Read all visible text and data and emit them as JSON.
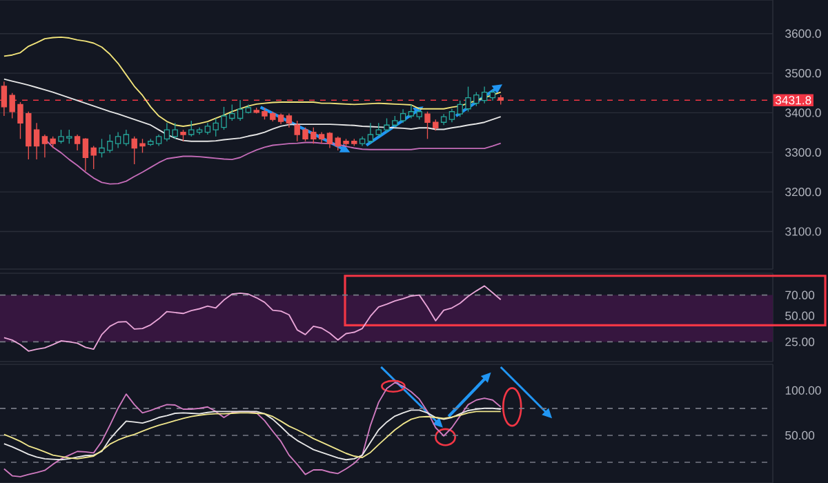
{
  "chart_data": [
    {
      "type": "candlestick",
      "categories": [
        null,
        null,
        null,
        null,
        null,
        null,
        null,
        null,
        null,
        null,
        null,
        null,
        null,
        null,
        null,
        null,
        null,
        null,
        null,
        null,
        null,
        null,
        null,
        null,
        null,
        null,
        null,
        null,
        null,
        null,
        null,
        null,
        null,
        null,
        null,
        null,
        null,
        null,
        null,
        null,
        null,
        null,
        null,
        null,
        null,
        null,
        null,
        null,
        null,
        null,
        null,
        null,
        null,
        null,
        null,
        null,
        null,
        null,
        null,
        null,
        null,
        null
      ],
      "ohlc": [
        [
          3467,
          3479,
          3392,
          3415
        ],
        [
          3444,
          3450,
          3386,
          3403
        ],
        [
          3421,
          3427,
          3334,
          3374
        ],
        [
          3398,
          3403,
          3282,
          3316
        ],
        [
          3357,
          3374,
          3282,
          3316
        ],
        [
          3340,
          3345,
          3287,
          3322
        ],
        [
          3334,
          3340,
          3311,
          3322
        ],
        [
          3328,
          3357,
          3322,
          3340
        ],
        [
          3336,
          3357,
          3322,
          3340
        ],
        [
          3340,
          3345,
          3305,
          3322
        ],
        [
          3334,
          3336,
          3253,
          3287
        ],
        [
          3311,
          3316,
          3258,
          3293
        ],
        [
          3299,
          3334,
          3287,
          3311
        ],
        [
          3305,
          3345,
          3299,
          3328
        ],
        [
          3322,
          3351,
          3311,
          3340
        ],
        [
          3322,
          3357,
          3316,
          3345
        ],
        [
          3334,
          3340,
          3270,
          3311
        ],
        [
          3322,
          3334,
          3299,
          3316
        ],
        [
          3320,
          3334,
          3316,
          3328
        ],
        [
          3322,
          3345,
          3316,
          3340
        ],
        [
          3334,
          3374,
          3328,
          3357
        ],
        [
          3340,
          3374,
          3334,
          3357
        ],
        [
          3351,
          3357,
          3328,
          3345
        ],
        [
          3345,
          3380,
          3340,
          3357
        ],
        [
          3351,
          3363,
          3345,
          3357
        ],
        [
          3351,
          3374,
          3345,
          3366
        ],
        [
          3357,
          3386,
          3340,
          3374
        ],
        [
          3363,
          3415,
          3357,
          3392
        ],
        [
          3386,
          3421,
          3380,
          3398
        ],
        [
          3386,
          3432,
          3380,
          3409
        ],
        [
          3401,
          3421,
          3398,
          3413
        ],
        [
          3406,
          3413,
          3398,
          3401
        ],
        [
          3403,
          3413,
          3383,
          3392
        ],
        [
          3398,
          3403,
          3378,
          3383
        ],
        [
          3394,
          3398,
          3371,
          3378
        ],
        [
          3392,
          3398,
          3363,
          3374
        ],
        [
          3369,
          3380,
          3328,
          3345
        ],
        [
          3357,
          3363,
          3328,
          3334
        ],
        [
          3351,
          3363,
          3322,
          3334
        ],
        [
          3345,
          3351,
          3322,
          3334
        ],
        [
          3348,
          3351,
          3311,
          3322
        ],
        [
          3336,
          3340,
          3305,
          3316
        ],
        [
          3328,
          3334,
          3316,
          3322
        ],
        [
          3328,
          3334,
          3316,
          3322
        ],
        [
          3322,
          3340,
          3316,
          3334
        ],
        [
          3328,
          3374,
          3322,
          3345
        ],
        [
          3345,
          3374,
          3340,
          3357
        ],
        [
          3357,
          3386,
          3351,
          3369
        ],
        [
          3369,
          3392,
          3363,
          3380
        ],
        [
          3380,
          3409,
          3374,
          3398
        ],
        [
          3392,
          3421,
          3386,
          3403
        ],
        [
          3390,
          3410,
          3383,
          3403
        ],
        [
          3397,
          3403,
          3334,
          3376
        ],
        [
          3376,
          3383,
          3355,
          3362
        ],
        [
          3376,
          3397,
          3369,
          3390
        ],
        [
          3383,
          3410,
          3376,
          3403
        ],
        [
          3397,
          3431,
          3390,
          3421
        ],
        [
          3410,
          3466,
          3403,
          3438
        ],
        [
          3424,
          3452,
          3417,
          3445
        ],
        [
          3431,
          3466,
          3424,
          3452
        ],
        [
          3438,
          3459,
          3431,
          3452
        ],
        [
          3438,
          3445,
          3421,
          3431.8
        ]
      ],
      "series": [
        {
          "type": "line",
          "color": "#f2e47a",
          "values": [
            3543,
            3546,
            3552,
            3568,
            3577,
            3587,
            3590,
            3591,
            3589,
            3584,
            3581,
            3576,
            3566,
            3548,
            3525,
            3496,
            3467,
            3444,
            3415,
            3392,
            3378,
            3369,
            3366,
            3369,
            3373,
            3378,
            3386,
            3394,
            3403,
            3410,
            3417,
            3422,
            3424,
            3426,
            3427,
            3427,
            3427,
            3427,
            3427,
            3424,
            3424,
            3423,
            3422,
            3421,
            3422,
            3423,
            3424,
            3423,
            3422,
            3421,
            3420,
            3410,
            3410,
            3410,
            3410,
            3414,
            3417,
            3424,
            3431,
            3438,
            3445,
            3452
          ]
        },
        {
          "type": "line",
          "color": "#e6e6e6",
          "values": [
            3485,
            3480,
            3475,
            3470,
            3464,
            3458,
            3452,
            3445,
            3438,
            3431,
            3424,
            3417,
            3410,
            3403,
            3397,
            3390,
            3383,
            3376,
            3369,
            3357,
            3345,
            3336,
            3330,
            3328,
            3328,
            3328,
            3329,
            3332,
            3334,
            3336,
            3341,
            3345,
            3351,
            3359,
            3366,
            3370,
            3371,
            3371,
            3371,
            3371,
            3371,
            3370,
            3369,
            3368,
            3366,
            3365,
            3364,
            3363,
            3362,
            3361,
            3359,
            3362,
            3362,
            3358,
            3358,
            3362,
            3365,
            3369,
            3372,
            3376,
            3383,
            3390
          ]
        },
        {
          "type": "line",
          "color": "#c46cb8",
          "values": [
            null,
            null,
            null,
            null,
            null,
            3334,
            3313,
            3299,
            3282,
            3267,
            3250,
            3235,
            3224,
            3220,
            3221,
            3227,
            3239,
            3250,
            3262,
            3274,
            3284,
            3287,
            3290,
            3290,
            3289,
            3287,
            3285,
            3283,
            3282,
            3287,
            3297,
            3306,
            3313,
            3318,
            3320,
            3322,
            3323,
            3325,
            3325,
            3323,
            3322,
            3320,
            3315,
            3311,
            3308,
            3307,
            3307,
            3307,
            3307,
            3307,
            3307,
            3310,
            3310,
            3310,
            3310,
            3310,
            3310,
            3310,
            3310,
            3310,
            3316,
            3323
          ]
        }
      ],
      "ylim": [
        3005,
        3685
      ],
      "yticks": [
        {
          "value": 3100,
          "label": "3100.0"
        },
        {
          "value": 3200,
          "label": "3200.0"
        },
        {
          "value": 3300,
          "label": "3300.0"
        },
        {
          "value": 3400,
          "label": "3400.0"
        },
        {
          "value": 3500,
          "label": "3500.0"
        },
        {
          "value": 3600,
          "label": "3600.0"
        }
      ],
      "grid": "y",
      "tick_labels": "y",
      "ref_lines": [
        {
          "axis": "y",
          "value": 3431.8,
          "label": "3431.8",
          "color": "#f23645",
          "line_style": "dashed"
        }
      ]
    },
    {
      "type": "line",
      "categories": [
        null,
        null,
        null,
        null,
        null,
        null,
        null,
        null,
        null,
        null,
        null,
        null,
        null,
        null,
        null,
        null,
        null,
        null,
        null,
        null,
        null,
        null,
        null,
        null,
        null,
        null,
        null,
        null,
        null,
        null,
        null,
        null,
        null,
        null,
        null,
        null,
        null,
        null,
        null,
        null,
        null,
        null,
        null,
        null,
        null,
        null,
        null,
        null,
        null,
        null,
        null,
        null,
        null,
        null,
        null,
        null,
        null,
        null,
        null,
        null,
        null,
        null
      ],
      "series": [
        {
          "color": "#e9a6d8",
          "values": [
            29.0,
            26.7,
            22.3,
            16.1,
            17.9,
            19.2,
            22.3,
            25.9,
            25.0,
            23.7,
            19.7,
            17.9,
            32.0,
            40.0,
            44.0,
            44.4,
            37.3,
            37.8,
            41.3,
            47.1,
            54.1,
            53.2,
            52.3,
            55.0,
            56.8,
            59.4,
            57.6,
            65.2,
            70.9,
            71.8,
            70.9,
            67.4,
            63.0,
            55.4,
            54.6,
            51.0,
            36.5,
            32.0,
            40.0,
            38.2,
            33.4,
            26.7,
            32.9,
            34.2,
            37.8,
            49.7,
            58.5,
            61.2,
            64.3,
            66.5,
            69.1,
            70.0,
            58.5,
            45.3,
            55.4,
            57.6,
            62.1,
            68.7,
            74.0,
            78.8,
            72.2,
            65.6
          ]
        }
      ],
      "ylim": [
        6,
        91
      ],
      "yticks": [
        {
          "value": 70,
          "label": "70.00"
        },
        {
          "value": 50,
          "label": "50.00"
        },
        {
          "value": 25,
          "label": "25.00"
        }
      ],
      "tick_labels": "y",
      "bands": [
        {
          "axis": "y",
          "from": 25,
          "to": 70,
          "color": "#36163f"
        }
      ],
      "ref_lines": [
        {
          "axis": "y",
          "value": 70,
          "color": "#787b86",
          "line_style": "dashed"
        },
        {
          "axis": "y",
          "value": 25,
          "color": "#787b86",
          "line_style": "dashed"
        }
      ]
    },
    {
      "type": "line",
      "categories": [
        null,
        null,
        null,
        null,
        null,
        null,
        null,
        null,
        null,
        null,
        null,
        null,
        null,
        null,
        null,
        null,
        null,
        null,
        null,
        null,
        null,
        null,
        null,
        null,
        null,
        null,
        null,
        null,
        null,
        null,
        null,
        null,
        null,
        null,
        null,
        null,
        null,
        null,
        null,
        null,
        null,
        null,
        null,
        null,
        null,
        null,
        null,
        null,
        null,
        null,
        null,
        null,
        null,
        null,
        null,
        null,
        null,
        null,
        null,
        null,
        null,
        null
      ],
      "series": [
        {
          "color": "#d07ac0",
          "values": [
            12.7,
            5.0,
            4.0,
            6.5,
            8.6,
            11.1,
            17.8,
            23.9,
            28.0,
            32.1,
            31.6,
            30.5,
            43.3,
            61.2,
            80.1,
            95.9,
            84.2,
            75.0,
            77.6,
            81.1,
            84.2,
            83.7,
            79.1,
            79.1,
            80.1,
            81.6,
            76.5,
            69.9,
            75.5,
            76.5,
            76.5,
            75.0,
            66.3,
            54.6,
            43.3,
            28.0,
            17.8,
            6.5,
            11.6,
            11.6,
            9.1,
            7.5,
            12.7,
            18.8,
            28.0,
            61.2,
            86.7,
            102.1,
            108.7,
            104.6,
            98.5,
            90.3,
            76.5,
            58.6,
            49.4,
            58.6,
            71.4,
            84.2,
            89.3,
            91.3,
            89.3,
            81.6
          ]
        },
        {
          "color": "#e8e8e8",
          "values": [
            40.7,
            37.2,
            33.1,
            29.0,
            25.9,
            23.9,
            23.4,
            22.9,
            23.9,
            25.9,
            27.5,
            28.0,
            32.1,
            45.9,
            56.1,
            65.8,
            64.8,
            63.7,
            66.3,
            69.9,
            71.9,
            74.5,
            75.0,
            74.5,
            74.0,
            75.5,
            76.5,
            76.5,
            76.5,
            76.5,
            76.5,
            76.5,
            74.0,
            67.9,
            59.7,
            51.0,
            44.3,
            39.2,
            34.1,
            31.0,
            28.0,
            24.9,
            22.9,
            23.9,
            28.0,
            42.3,
            56.1,
            64.8,
            71.4,
            75.0,
            78.1,
            78.1,
            75.0,
            69.9,
            67.9,
            69.9,
            74.0,
            77.6,
            79.1,
            80.1,
            80.1,
            79.1
          ]
        },
        {
          "color": "#f0e68c",
          "values": [
            51.0,
            47.4,
            43.3,
            38.2,
            35.1,
            31.6,
            28.0,
            26.5,
            24.9,
            23.9,
            25.4,
            26.9,
            33.1,
            40.2,
            44.8,
            48.4,
            51.0,
            54.6,
            58.1,
            61.2,
            63.7,
            66.3,
            68.9,
            70.9,
            72.4,
            73.5,
            74.0,
            74.0,
            74.5,
            75.0,
            75.0,
            74.5,
            74.0,
            70.9,
            65.8,
            60.2,
            56.1,
            51.5,
            46.4,
            42.3,
            38.2,
            34.1,
            30.0,
            26.9,
            25.4,
            31.0,
            39.7,
            47.9,
            56.1,
            62.7,
            67.9,
            70.4,
            70.9,
            69.9,
            68.9,
            70.4,
            72.4,
            75.0,
            76.5,
            76.5,
            76.5,
            76.5
          ]
        }
      ],
      "ylim": [
        -3,
        129
      ],
      "yticks": [
        {
          "value": 100,
          "label": "100.00"
        },
        {
          "value": 50,
          "label": "50.00"
        }
      ],
      "tick_labels": "y",
      "ref_lines": [
        {
          "axis": "y",
          "value": 80,
          "color": "#787b86",
          "line_style": "dashed"
        },
        {
          "axis": "y",
          "value": 50,
          "color": "#787b86",
          "line_style": "dashed"
        },
        {
          "axis": "y",
          "value": 20,
          "color": "#787b86",
          "line_style": "dashed"
        }
      ]
    }
  ]
}
